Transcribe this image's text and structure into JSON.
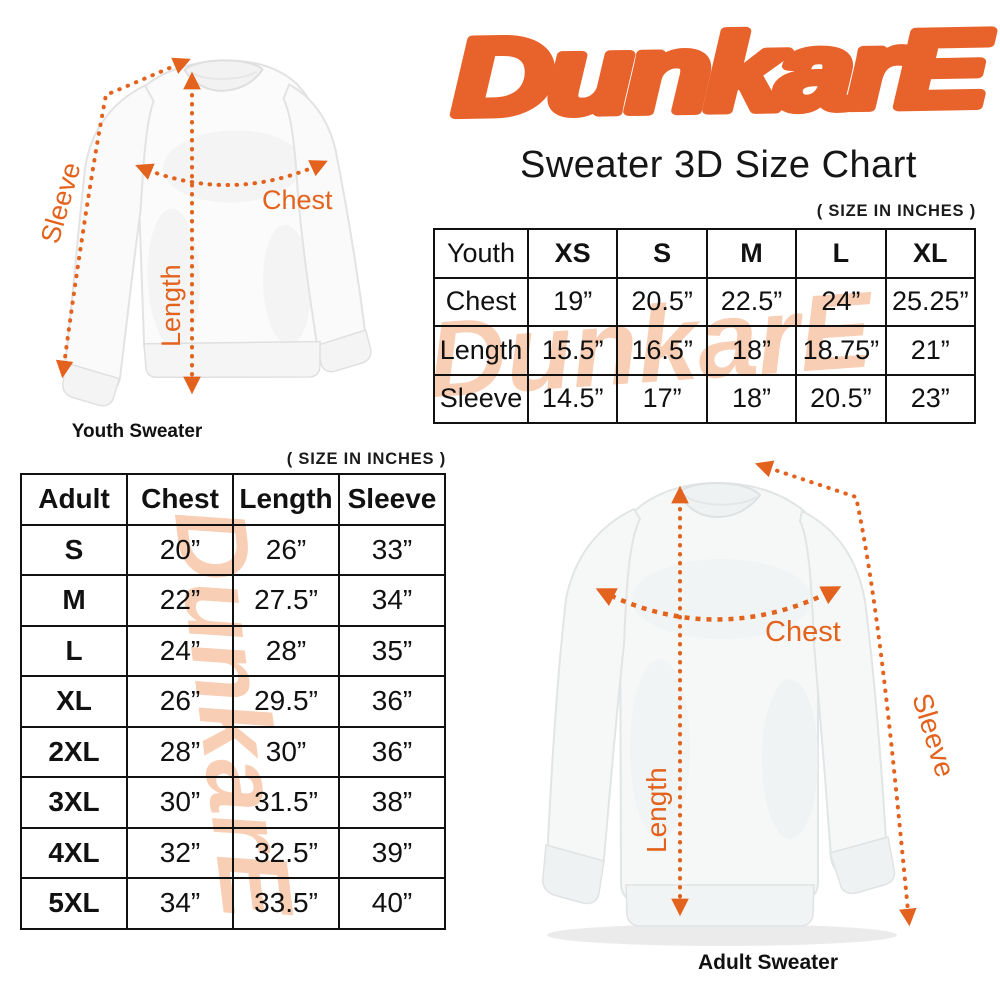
{
  "brand": {
    "logo_text": "DunkarE",
    "logo_color": "#E8622B"
  },
  "title": "Sweater 3D Size Chart",
  "size_note": "( SIZE IN INCHES )",
  "colors": {
    "accent_orange": "#E3621D",
    "watermark_peach": "#F8CEB4",
    "table_border": "#111111",
    "background": "#FFFFFF"
  },
  "youth": {
    "caption": "Youth Sweater",
    "measurements": {
      "chest": "Chest",
      "length": "Length",
      "sleeve": "Sleeve"
    },
    "table": {
      "header": [
        "Youth",
        "XS",
        "S",
        "M",
        "L",
        "XL"
      ],
      "rows": [
        [
          "Chest",
          "19”",
          "20.5”",
          "22.5”",
          "24”",
          "25.25”"
        ],
        [
          "Length",
          "15.5”",
          "16.5”",
          "18”",
          "18.75”",
          "21”"
        ],
        [
          "Sleeve",
          "14.5”",
          "17”",
          "18”",
          "20.5”",
          "23”"
        ]
      ]
    }
  },
  "adult": {
    "caption": "Adult Sweater",
    "measurements": {
      "chest": "Chest",
      "length": "Length",
      "sleeve": "Sleeve"
    },
    "table": {
      "header": [
        "Adult",
        "Chest",
        "Length",
        "Sleeve"
      ],
      "rows": [
        [
          "S",
          "20”",
          "26”",
          "33”"
        ],
        [
          "M",
          "22”",
          "27.5”",
          "34”"
        ],
        [
          "L",
          "24”",
          "28”",
          "35”"
        ],
        [
          "XL",
          "26”",
          "29.5”",
          "36”"
        ],
        [
          "2XL",
          "28”",
          "30”",
          "36”"
        ],
        [
          "3XL",
          "30”",
          "31.5”",
          "38”"
        ],
        [
          "4XL",
          "32”",
          "32.5”",
          "39”"
        ],
        [
          "5XL",
          "34”",
          "33.5”",
          "40”"
        ]
      ]
    }
  }
}
